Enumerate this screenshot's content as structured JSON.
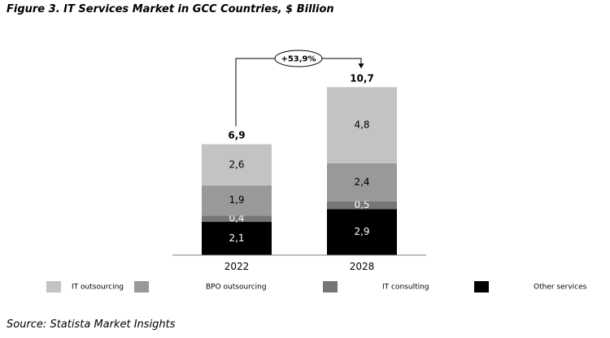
{
  "header": {
    "title": "Figure 3. IT Services Market in GCC Countries, $ Billion"
  },
  "footer": {
    "source": "Source: Statista Market Insights"
  },
  "chart_data": {
    "type": "bar",
    "stacked": true,
    "title": "Figure 3. IT Services Market in GCC Countries, $ Billion",
    "xlabel": "",
    "ylabel": "",
    "categories": [
      "2022",
      "2028"
    ],
    "totals": [
      6.9,
      10.7
    ],
    "total_labels": [
      "6,9",
      "10,7"
    ],
    "series": [
      {
        "name": "Other services",
        "values": [
          2.1,
          2.9
        ],
        "labels": [
          "2,1",
          "2,9"
        ],
        "color": "#000000",
        "label_color": "#ffffff"
      },
      {
        "name": "IT consulting",
        "values": [
          0.4,
          0.5
        ],
        "labels": [
          "0,4",
          "0,5"
        ],
        "color": "#767676",
        "label_color": "#ffffff"
      },
      {
        "name": "BPO outsourcing",
        "values": [
          1.9,
          2.4
        ],
        "labels": [
          "1,9",
          "2,4"
        ],
        "color": "#999999",
        "label_color": "#000000"
      },
      {
        "name": "IT outsourcing",
        "values": [
          2.6,
          4.8
        ],
        "labels": [
          "2,6",
          "4,8"
        ],
        "color": "#c3c3c3",
        "label_color": "#000000"
      }
    ],
    "legend_order": [
      "IT outsourcing",
      "BPO outsourcing",
      "IT consulting",
      "Other services"
    ],
    "annotation": {
      "text": "+53,9%",
      "from": "2022",
      "to": "2028"
    },
    "ylim": [
      0,
      12
    ],
    "grid": false,
    "legend_position": "bottom"
  }
}
